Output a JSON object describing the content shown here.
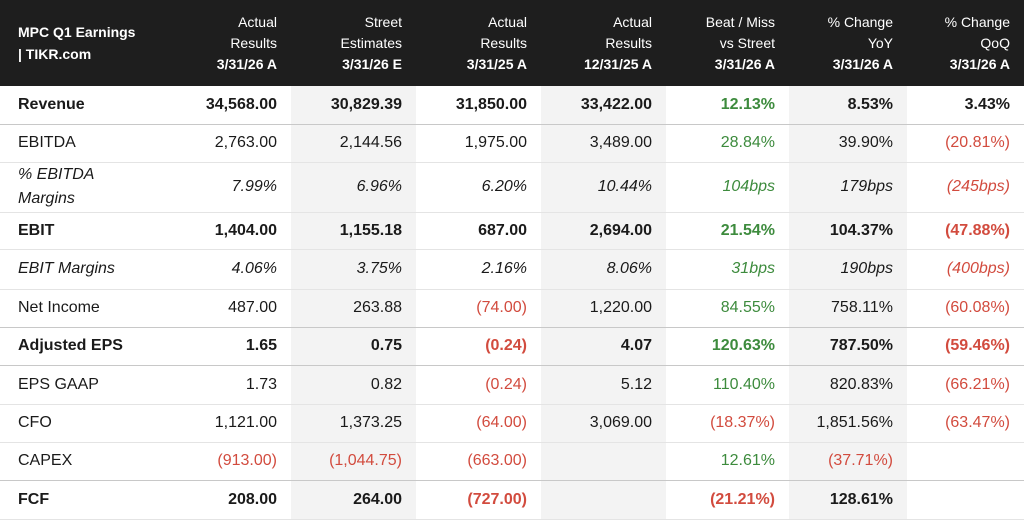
{
  "header": {
    "title_line1": "MPC Q1 Earnings",
    "title_line2": "| TIKR.com",
    "columns": [
      {
        "line1": "Actual",
        "line2": "Results",
        "date": "3/31/26 A"
      },
      {
        "line1": "Street",
        "line2": "Estimates",
        "date": "3/31/26 E"
      },
      {
        "line1": "Actual",
        "line2": "Results",
        "date": "3/31/25 A"
      },
      {
        "line1": "Actual",
        "line2": "Results",
        "date": "12/31/25 A"
      },
      {
        "line1": "Beat / Miss",
        "line2": "vs Street",
        "date": "3/31/26 A"
      },
      {
        "line1": "% Change",
        "line2": "YoY",
        "date": "3/31/26 A"
      },
      {
        "line1": "% Change",
        "line2": "QoQ",
        "date": "3/31/26 A"
      }
    ]
  },
  "rows": [
    {
      "label": "Revenue",
      "cells": [
        "34,568.00",
        "30,829.39",
        "31,850.00",
        "33,422.00",
        "12.13%",
        "8.53%",
        "3.43%"
      ]
    },
    {
      "label": "EBITDA",
      "cells": [
        "2,763.00",
        "2,144.56",
        "1,975.00",
        "3,489.00",
        "28.84%",
        "39.90%",
        "(20.81%)"
      ]
    },
    {
      "label": "% EBITDA Margins",
      "cells": [
        "7.99%",
        "6.96%",
        "6.20%",
        "10.44%",
        "104bps",
        "179bps",
        "(245bps)"
      ]
    },
    {
      "label": "EBIT",
      "cells": [
        "1,404.00",
        "1,155.18",
        "687.00",
        "2,694.00",
        "21.54%",
        "104.37%",
        "(47.88%)"
      ]
    },
    {
      "label": "EBIT Margins",
      "cells": [
        "4.06%",
        "3.75%",
        "2.16%",
        "8.06%",
        "31bps",
        "190bps",
        "(400bps)"
      ]
    },
    {
      "label": "Net Income",
      "cells": [
        "487.00",
        "263.88",
        "(74.00)",
        "1,220.00",
        "84.55%",
        "758.11%",
        "(60.08%)"
      ]
    },
    {
      "label": "Adjusted EPS",
      "cells": [
        "1.65",
        "0.75",
        "(0.24)",
        "4.07",
        "120.63%",
        "787.50%",
        "(59.46%)"
      ]
    },
    {
      "label": "EPS GAAP",
      "cells": [
        "1.73",
        "0.82",
        "(0.24)",
        "5.12",
        "110.40%",
        "820.83%",
        "(66.21%)"
      ]
    },
    {
      "label": "CFO",
      "cells": [
        "1,121.00",
        "1,373.25",
        "(64.00)",
        "3,069.00",
        "(18.37%)",
        "1,851.56%",
        "(63.47%)"
      ]
    },
    {
      "label": "CAPEX",
      "cells": [
        "(913.00)",
        "(1,044.75)",
        "(663.00)",
        "",
        "12.61%",
        "(37.71%)",
        ""
      ]
    },
    {
      "label": "FCF",
      "cells": [
        "208.00",
        "264.00",
        "(727.00)",
        "",
        "(21.21%)",
        "128.61%",
        ""
      ]
    }
  ],
  "colors": {
    "header_bg": "#1e1e1e",
    "positive": "#3d8b3d",
    "negative": "#d24b3e",
    "band": "#f3f3f3"
  }
}
